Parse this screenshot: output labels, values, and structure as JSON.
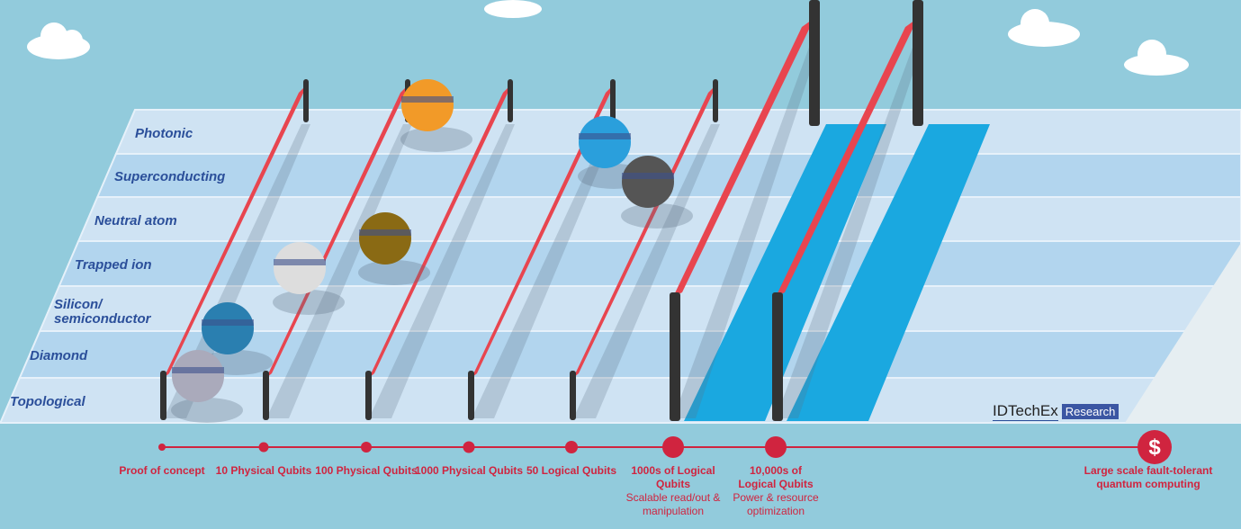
{
  "lanes": [
    "Photonic",
    "Superconducting",
    "Neutral atom",
    "Trapped ion",
    "Silicon/ semiconductor",
    "Diamond",
    "Topological"
  ],
  "milestones": [
    {
      "title": "Proof of concept",
      "sub": ""
    },
    {
      "title": "10 Physical Qubits",
      "sub": ""
    },
    {
      "title": "100 Physical Qubits",
      "sub": ""
    },
    {
      "title": "1000 Physical Qubits",
      "sub": ""
    },
    {
      "title": "50 Logical Qubits",
      "sub": ""
    },
    {
      "title": "1000s of Logical Qubits",
      "sub": "Scalable read/out & manipulation"
    },
    {
      "title": "10,000s of Logical Qubits",
      "sub": "Power & resource optimization"
    },
    {
      "title": "Large scale fault-tolerant quantum computing",
      "sub": ""
    }
  ],
  "goal_icon": "dollar-icon",
  "logo": {
    "name": "IDTechEx",
    "tag": "Research"
  },
  "colors": {
    "sky": "#92cbdc",
    "lane_light": "#cfe3f3",
    "lane_dark": "#b2d5ee",
    "hurdle": "#e8454f",
    "timeline": "#d0243f",
    "label": "#2b4f9a",
    "water": "#1aa8e0"
  }
}
